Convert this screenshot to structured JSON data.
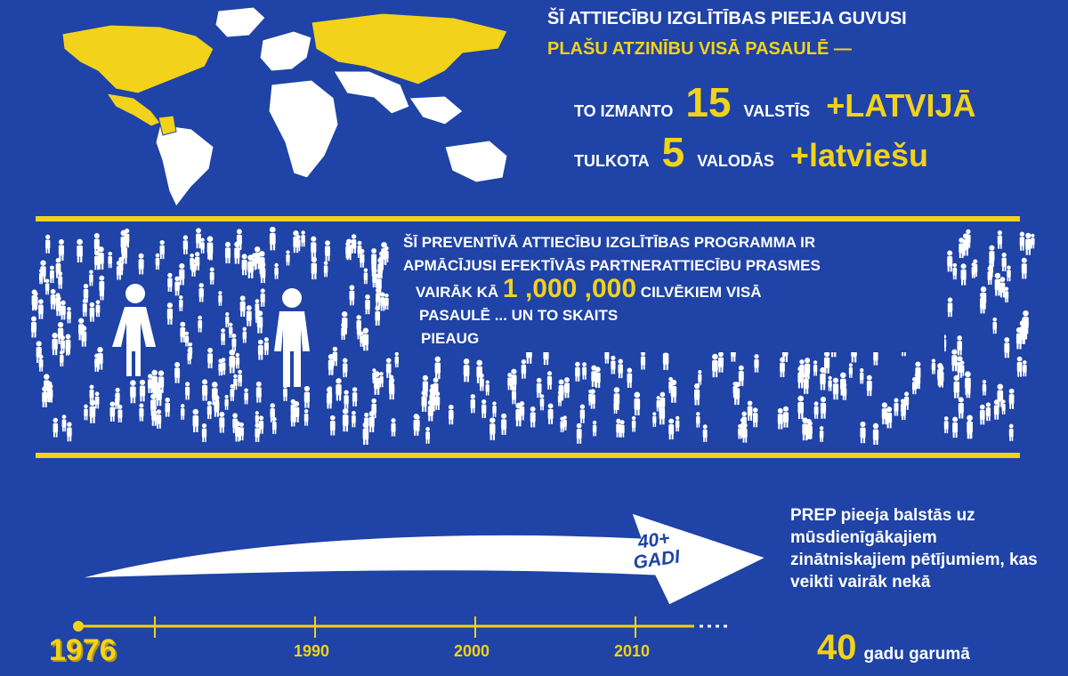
{
  "headline": {
    "line1": "ŠĪ ATTIECĪBU IZGLĪTĪBAS PIEEJA GUVUSI",
    "line2": "PLAŠU ATZINĪBU VISĀ PASAULĒ —"
  },
  "stats": {
    "countries": {
      "prefix": "TO IZMANTO",
      "number": "15",
      "unit": "VALSTĪS",
      "plus": "+LATVIJĀ"
    },
    "languages": {
      "prefix": "TULKOTA",
      "number": "5",
      "unit": "VALODĀS",
      "plus": "+latviešu"
    }
  },
  "people": {
    "line1": "ŠĪ PREVENTĪVĀ ATTIECĪBU IZGLĪTĪBAS PROGRAMMA IR",
    "line2": "APMĀCĪJUSI EFEKTĪVĀS PARTNERATTIECĪBU PRASMES",
    "pre": "VAIRĀK KĀ",
    "count": "1 ,000 ,000",
    "post": "CILVĒKIEM VISĀ",
    "line4": "PASAULĒ ... UN TO SKAITS",
    "line5": "PIEAUG"
  },
  "timeline": {
    "arrow_line1": "40+",
    "arrow_line2": "GADI",
    "start_year": "1976",
    "ticks": [
      "1990",
      "2000",
      "2010"
    ]
  },
  "prep": {
    "text": "PREP pieeja balstās uz mūsdienīgākajiem zinātniskajiem pētījumiem, kas veikti vairāk nekā",
    "number": "40",
    "suffix": "gadu garumā"
  },
  "colors": {
    "background": "#1f43a6",
    "accent": "#f2d21a",
    "text": "#ffffff"
  }
}
